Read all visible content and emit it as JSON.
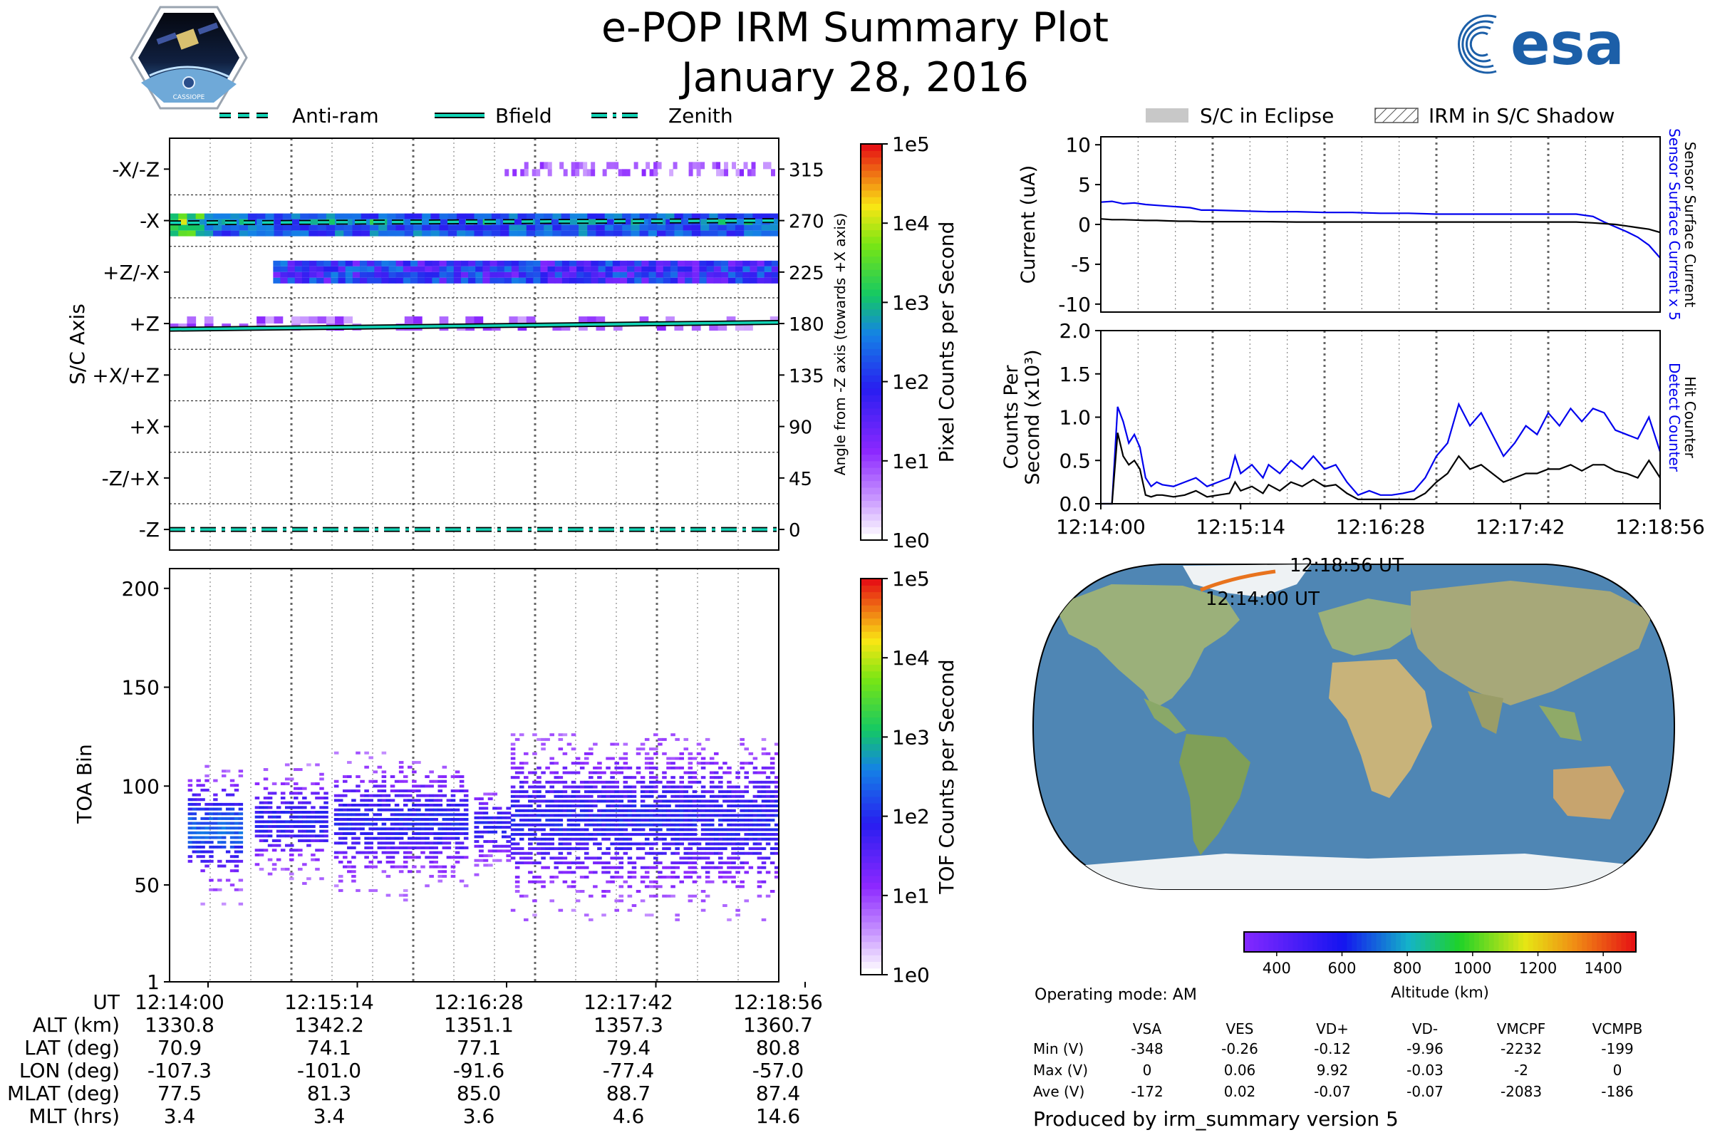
{
  "header": {
    "title": "e-POP IRM Summary Plot",
    "date": "January 28, 2016",
    "left_logo_caption": "CASSIOPE",
    "right_logo_text": "esa"
  },
  "legends": {
    "axis_lines": [
      "Anti-ram",
      "Bfield",
      "Zenith"
    ],
    "shading": [
      "S/C in Eclipse",
      "IRM in S/C Shadow"
    ]
  },
  "colors": {
    "accent_line": "#12d4b6",
    "blue": "#0000ee",
    "orange": "#e8731d",
    "eclipse_gray": "#c8c8c8"
  },
  "time_axis": [
    "12:14:00",
    "12:15:14",
    "12:16:28",
    "12:17:42",
    "12:18:56"
  ],
  "chart_data": [
    {
      "type": "heatmap",
      "name": "pixel",
      "ylabel": "S/C Axis",
      "ytick_labels": [
        "-X/-Z",
        "-X",
        "+Z/-X",
        "+Z",
        "+X/+Z",
        "+X",
        "-Z/+X",
        "-Z"
      ],
      "right_ylabel": "Angle from -Z axis (towards +X axis)",
      "right_ticks": [
        315,
        270,
        225,
        180,
        135,
        90,
        45,
        0
      ],
      "ylim": [
        -18,
        342
      ],
      "colorbar": {
        "label": "Pixel Counts per Second",
        "ticks": [
          "1e5",
          "1e4",
          "1e3",
          "1e2",
          "1e1",
          "1e0"
        ],
        "scale": "log"
      },
      "bands": [
        {
          "angle": 315,
          "intensity": "sparse-low",
          "start": 0.55,
          "end": 1.0
        },
        {
          "angle": 270,
          "intensity": "high",
          "start": 0.0,
          "end": 1.0
        },
        {
          "angle": 225,
          "intensity": "medium-high",
          "start": 0.17,
          "end": 1.0
        },
        {
          "angle": 180,
          "intensity": "sparse-low",
          "start": 0.0,
          "end": 1.0
        }
      ],
      "lines": [
        {
          "name": "Anti-ram",
          "style": "dashed",
          "y_start": 268,
          "y_end": 270
        },
        {
          "name": "Bfield",
          "style": "solid",
          "y_start": 175,
          "y_end": 181
        },
        {
          "name": "Zenith",
          "style": "dashdot",
          "y_start": 0,
          "y_end": 0
        }
      ]
    },
    {
      "type": "heatmap",
      "name": "tof",
      "ylabel": "TOA Bin",
      "yticks": [
        1,
        50,
        100,
        150,
        200
      ],
      "ylim": [
        1,
        210
      ],
      "colorbar": {
        "label": "TOF Counts per Second",
        "ticks": [
          "1e5",
          "1e4",
          "1e3",
          "1e2",
          "1e1",
          "1e0"
        ],
        "scale": "log"
      },
      "bands": [
        {
          "start": 0.03,
          "end": 0.12,
          "center": 78,
          "width": 26
        },
        {
          "start": 0.14,
          "end": 0.26,
          "center": 82,
          "width": 22
        },
        {
          "start": 0.27,
          "end": 0.49,
          "center": 82,
          "width": 28
        },
        {
          "start": 0.5,
          "end": 0.56,
          "center": 80,
          "width": 18
        },
        {
          "start": 0.56,
          "end": 1.0,
          "center": 82,
          "width": 38
        }
      ]
    },
    {
      "type": "line",
      "name": "current",
      "ylabel": "Current (uA)",
      "ylim": [
        -11,
        11
      ],
      "yticks": [
        10,
        5,
        0,
        -5,
        -10
      ],
      "right_labels": [
        "Sensor Surface Current x 5",
        "Sensor Surface Current"
      ],
      "x": [
        0,
        0.02,
        0.04,
        0.06,
        0.08,
        0.1,
        0.12,
        0.14,
        0.16,
        0.18,
        0.2,
        0.25,
        0.3,
        0.35,
        0.4,
        0.45,
        0.5,
        0.55,
        0.6,
        0.65,
        0.7,
        0.75,
        0.8,
        0.85,
        0.88,
        0.9,
        0.92,
        0.94,
        0.96,
        0.98,
        1.0
      ],
      "series": [
        {
          "name": "Sensor Surface Current x 5",
          "color": "#0000ee",
          "values": [
            2.8,
            2.9,
            2.6,
            2.7,
            2.5,
            2.4,
            2.3,
            2.2,
            2.1,
            1.8,
            1.8,
            1.7,
            1.6,
            1.6,
            1.5,
            1.5,
            1.4,
            1.4,
            1.3,
            1.3,
            1.3,
            1.3,
            1.3,
            1.3,
            1.0,
            0.3,
            -0.3,
            -0.9,
            -1.6,
            -2.6,
            -4.2
          ]
        },
        {
          "name": "Sensor Surface Current",
          "color": "#000000",
          "values": [
            0.7,
            0.6,
            0.6,
            0.55,
            0.5,
            0.5,
            0.45,
            0.4,
            0.4,
            0.35,
            0.35,
            0.35,
            0.35,
            0.3,
            0.3,
            0.3,
            0.3,
            0.3,
            0.3,
            0.3,
            0.3,
            0.3,
            0.3,
            0.3,
            0.2,
            0.1,
            0.0,
            -0.2,
            -0.4,
            -0.6,
            -1.0
          ]
        }
      ]
    },
    {
      "type": "line",
      "name": "counts",
      "ylabel": "Counts Per Second (x10³)",
      "ylim": [
        0,
        2.0
      ],
      "yticks": [
        0.0,
        0.5,
        1.0,
        1.5,
        2.0
      ],
      "right_labels": [
        "Detect Counter",
        "Hit Counter"
      ],
      "x": [
        0,
        0.02,
        0.03,
        0.04,
        0.05,
        0.06,
        0.07,
        0.08,
        0.09,
        0.1,
        0.11,
        0.13,
        0.15,
        0.17,
        0.19,
        0.21,
        0.23,
        0.24,
        0.25,
        0.27,
        0.29,
        0.3,
        0.32,
        0.34,
        0.36,
        0.38,
        0.4,
        0.42,
        0.44,
        0.46,
        0.48,
        0.5,
        0.52,
        0.54,
        0.56,
        0.58,
        0.6,
        0.62,
        0.64,
        0.66,
        0.68,
        0.7,
        0.72,
        0.74,
        0.76,
        0.78,
        0.8,
        0.82,
        0.84,
        0.86,
        0.88,
        0.9,
        0.92,
        0.94,
        0.96,
        0.98,
        1.0
      ],
      "series": [
        {
          "name": "Detect Counter",
          "color": "#0000ee",
          "values": [
            0.0,
            0.0,
            1.12,
            0.95,
            0.7,
            0.8,
            0.65,
            0.3,
            0.2,
            0.25,
            0.22,
            0.2,
            0.25,
            0.3,
            0.2,
            0.25,
            0.3,
            0.55,
            0.35,
            0.45,
            0.3,
            0.45,
            0.35,
            0.5,
            0.4,
            0.55,
            0.4,
            0.45,
            0.25,
            0.1,
            0.15,
            0.1,
            0.1,
            0.12,
            0.15,
            0.3,
            0.55,
            0.7,
            1.15,
            0.9,
            1.05,
            0.8,
            0.55,
            0.7,
            0.9,
            0.8,
            1.05,
            0.9,
            1.1,
            0.95,
            1.1,
            1.05,
            0.85,
            0.8,
            0.75,
            1.0,
            0.6
          ]
        },
        {
          "name": "Hit Counter",
          "color": "#000000",
          "values": [
            0.0,
            0.0,
            0.82,
            0.55,
            0.45,
            0.5,
            0.4,
            0.1,
            0.08,
            0.1,
            0.1,
            0.08,
            0.1,
            0.15,
            0.08,
            0.1,
            0.12,
            0.25,
            0.15,
            0.2,
            0.12,
            0.22,
            0.15,
            0.25,
            0.2,
            0.28,
            0.2,
            0.22,
            0.12,
            0.05,
            0.05,
            0.05,
            0.05,
            0.05,
            0.05,
            0.12,
            0.25,
            0.35,
            0.55,
            0.4,
            0.45,
            0.35,
            0.25,
            0.3,
            0.35,
            0.35,
            0.4,
            0.4,
            0.45,
            0.38,
            0.45,
            0.45,
            0.38,
            0.35,
            0.3,
            0.5,
            0.3
          ]
        }
      ]
    },
    {
      "type": "map",
      "name": "ground-track",
      "track_labels": [
        "12:18:56 UT",
        "12:14:00 UT"
      ],
      "colorbar": {
        "label": "Altitude (km)",
        "ticks": [
          400,
          600,
          800,
          1000,
          1200,
          1400
        ],
        "range": [
          300,
          1500
        ]
      }
    }
  ],
  "ephemeris": {
    "labels": [
      "UT",
      "ALT (km)",
      "LAT (deg)",
      "LON (deg)",
      "MLAT (deg)",
      "MLT (hrs)"
    ],
    "columns": [
      [
        "12:14:00",
        "1330.8",
        "70.9",
        "-107.3",
        "77.5",
        "3.4"
      ],
      [
        "12:15:14",
        "1342.2",
        "74.1",
        "-101.0",
        "81.3",
        "3.4"
      ],
      [
        "12:16:28",
        "1351.1",
        "77.1",
        "-91.6",
        "85.0",
        "3.6"
      ],
      [
        "12:17:42",
        "1357.3",
        "79.4",
        "-77.4",
        "88.7",
        "4.6"
      ],
      [
        "12:18:56",
        "1360.7",
        "80.8",
        "-57.0",
        "87.4",
        "14.6"
      ]
    ]
  },
  "voltages": {
    "operating_mode": "Operating mode: AM",
    "headers": [
      "VSA",
      "VES",
      "VD+",
      "VD-",
      "VMCPF",
      "VCMPB"
    ],
    "rows": [
      {
        "label": "Min (V)",
        "values": [
          "-348",
          "-0.26",
          "-0.12",
          "-9.96",
          "-2232",
          "-199"
        ]
      },
      {
        "label": "Max (V)",
        "values": [
          "0",
          "0.06",
          "9.92",
          "-0.03",
          "-2",
          "0"
        ]
      },
      {
        "label": "Ave (V)",
        "values": [
          "-172",
          "0.02",
          "-0.07",
          "-0.07",
          "-2083",
          "-186"
        ]
      }
    ]
  },
  "footer": "Produced by irm_summary version 5"
}
